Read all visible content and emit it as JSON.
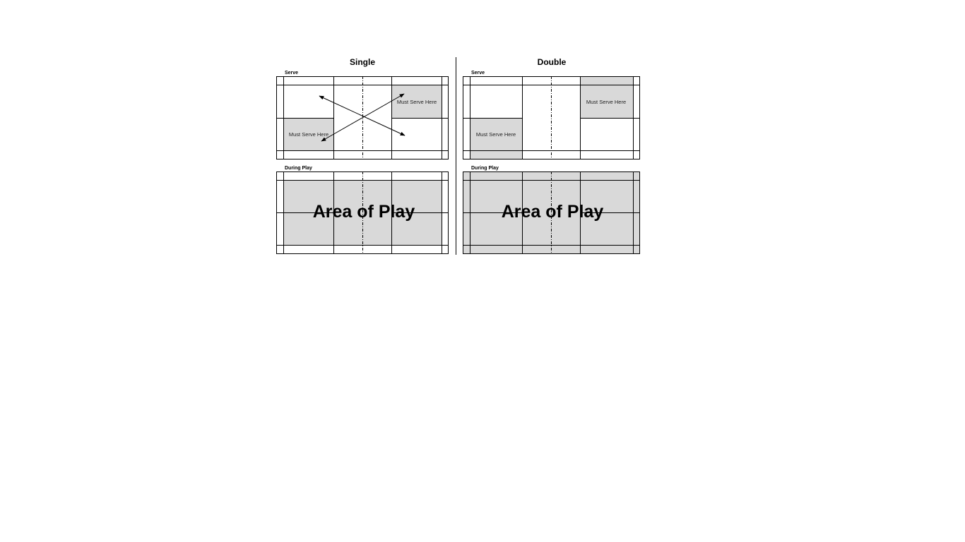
{
  "single": {
    "heading": "Single",
    "serve_label": "Serve",
    "serve_box_top_right": "Must Serve Here",
    "serve_box_bottom_left": "Must Serve Here",
    "play_label": "During Play",
    "area_text": "Area of Play"
  },
  "double": {
    "heading": "Double",
    "serve_label": "Serve",
    "serve_box_top_right": "Must Serve Here",
    "serve_box_bottom_left": "Must Serve Here",
    "play_label": "During Play",
    "area_text": "Area of Play"
  },
  "colors": {
    "shade": "#d9d9d9",
    "lines": "#000000",
    "background": "#ffffff"
  }
}
